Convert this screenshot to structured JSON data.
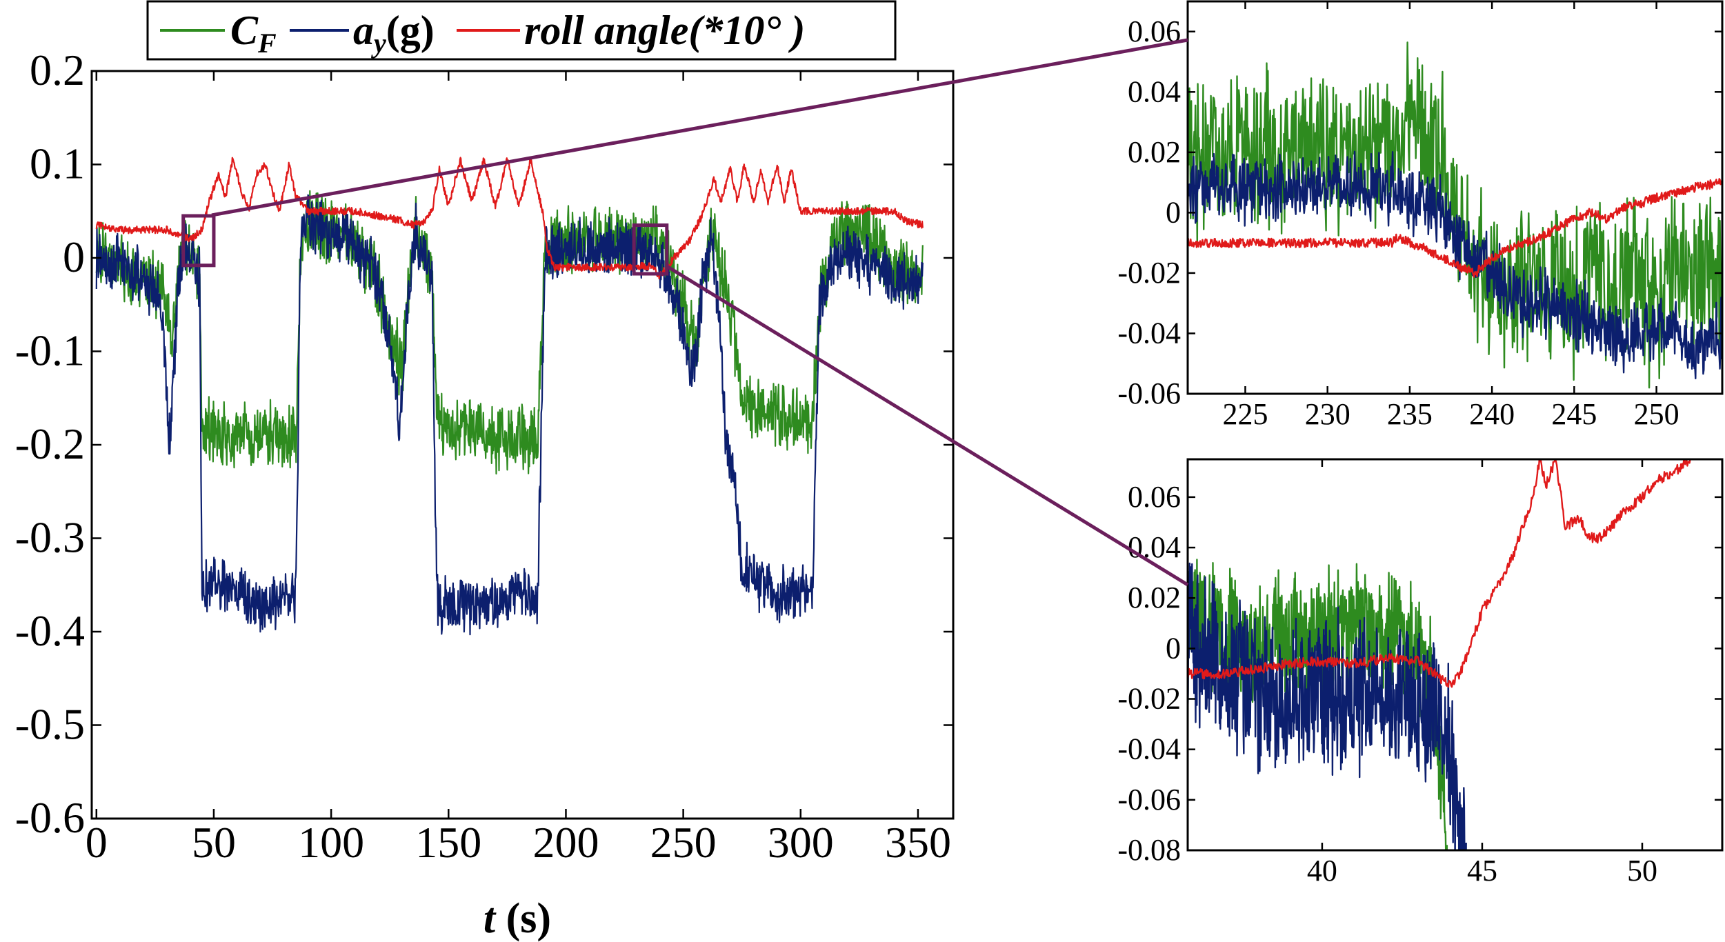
{
  "colors": {
    "cf": "#2e8b1f",
    "ay": "#0c1f6e",
    "roll": "#e01a1a",
    "zoom": "#6b1f5c",
    "axis": "#000000"
  },
  "legend": {
    "cf_main": "C",
    "cf_sub": "F",
    "ay_main": "a",
    "ay_sub": "y",
    "ay_unit": "(g)",
    "roll": "roll angle(*10°  )"
  },
  "main_plot": {
    "xlabel_var": "t",
    "xlabel_unit": " (s)"
  },
  "chart_data": [
    {
      "name": "main",
      "type": "line",
      "title": "",
      "xlabel": "t (s)",
      "ylabel": "",
      "xlim": [
        -2,
        365
      ],
      "ylim": [
        -0.6,
        0.2
      ],
      "xticks": [
        0,
        50,
        100,
        150,
        200,
        250,
        300,
        350
      ],
      "yticks": [
        0.2,
        0.1,
        0,
        -0.1,
        -0.2,
        -0.3,
        -0.4,
        -0.5,
        -0.6
      ],
      "ytick_labels": [
        "0.2",
        "0.1",
        "0",
        "-0.1",
        "-0.2",
        "-0.3",
        "-0.4",
        "-0.5",
        "-0.6"
      ],
      "zoom_boxes": [
        {
          "x": [
            37,
            50
          ],
          "y": [
            -0.008,
            0.045
          ]
        },
        {
          "x": [
            229,
            243
          ],
          "y": [
            -0.017,
            0.035
          ]
        }
      ],
      "series": [
        {
          "name": "C_F",
          "key": "cf",
          "noise": 0.035,
          "x": [
            0,
            10,
            20,
            28,
            32,
            35,
            38,
            41,
            44,
            45,
            50,
            60,
            70,
            80,
            85,
            87,
            90,
            100,
            110,
            118,
            122,
            126,
            130,
            133,
            136,
            140,
            143,
            145,
            150,
            160,
            170,
            180,
            188,
            191,
            195,
            200,
            210,
            220,
            230,
            234,
            238,
            243,
            247,
            250,
            253,
            256,
            258,
            260,
            262,
            265,
            268,
            272,
            275,
            280,
            290,
            300,
            305,
            308,
            315,
            320,
            325,
            330,
            340,
            348,
            352
          ],
          "y": [
            0.005,
            -0.01,
            -0.02,
            -0.03,
            -0.09,
            -0.01,
            0.01,
            0.0,
            -0.02,
            -0.19,
            -0.19,
            -0.19,
            -0.19,
            -0.19,
            -0.19,
            0.02,
            0.04,
            0.03,
            0.01,
            -0.01,
            -0.05,
            -0.09,
            -0.12,
            -0.04,
            0.03,
            0.0,
            -0.02,
            -0.17,
            -0.18,
            -0.18,
            -0.19,
            -0.19,
            -0.19,
            0.0,
            0.02,
            0.02,
            0.02,
            0.02,
            0.02,
            0.02,
            0.02,
            0.0,
            -0.03,
            -0.05,
            -0.08,
            -0.1,
            -0.03,
            -0.01,
            0.03,
            0.0,
            -0.03,
            -0.09,
            -0.15,
            -0.16,
            -0.17,
            -0.18,
            -0.18,
            -0.05,
            0.02,
            0.03,
            0.03,
            0.02,
            -0.01,
            -0.02,
            -0.01
          ]
        },
        {
          "name": "a_y",
          "key": "ay",
          "noise": 0.03,
          "x": [
            0,
            10,
            20,
            28,
            31,
            35,
            38,
            41,
            44,
            45,
            50,
            60,
            70,
            80,
            85,
            87,
            90,
            100,
            110,
            118,
            122,
            126,
            129,
            133,
            136,
            140,
            143,
            145,
            150,
            160,
            170,
            180,
            188,
            191,
            195,
            200,
            210,
            220,
            230,
            234,
            238,
            243,
            247,
            250,
            253,
            256,
            258,
            260,
            262,
            265,
            268,
            272,
            275,
            280,
            290,
            300,
            305,
            308,
            315,
            320,
            325,
            330,
            340,
            348,
            352
          ],
          "y": [
            0.0,
            -0.01,
            -0.02,
            -0.05,
            -0.2,
            -0.02,
            0.01,
            0.0,
            -0.02,
            -0.35,
            -0.35,
            -0.36,
            -0.37,
            -0.36,
            -0.36,
            0.02,
            0.04,
            0.03,
            0.01,
            -0.01,
            -0.05,
            -0.1,
            -0.19,
            -0.04,
            0.03,
            0.0,
            -0.02,
            -0.37,
            -0.37,
            -0.37,
            -0.37,
            -0.36,
            -0.36,
            0.0,
            0.01,
            0.01,
            0.01,
            0.01,
            0.01,
            0.01,
            0.0,
            -0.02,
            -0.05,
            -0.08,
            -0.12,
            -0.1,
            -0.03,
            -0.01,
            0.03,
            -0.05,
            -0.2,
            -0.23,
            -0.33,
            -0.34,
            -0.36,
            -0.36,
            -0.36,
            -0.05,
            0.0,
            0.01,
            0.0,
            -0.01,
            -0.02,
            -0.03,
            -0.02
          ]
        },
        {
          "name": "roll angle",
          "key": "roll",
          "noise": 0.004,
          "x": [
            0,
            10,
            20,
            30,
            35,
            40,
            45,
            48,
            52,
            55,
            58,
            62,
            65,
            68,
            72,
            75,
            78,
            82,
            85,
            87,
            90,
            100,
            110,
            120,
            130,
            135,
            140,
            143,
            146,
            150,
            155,
            160,
            165,
            170,
            175,
            180,
            185,
            190,
            192,
            195,
            200,
            210,
            220,
            230,
            233,
            237,
            240,
            243,
            246,
            250,
            253,
            257,
            260,
            263,
            266,
            270,
            273,
            276,
            280,
            283,
            286,
            290,
            293,
            296,
            300,
            303,
            306,
            308,
            320,
            330,
            340,
            345,
            352
          ],
          "y": [
            0.035,
            0.03,
            0.03,
            0.03,
            0.025,
            0.02,
            0.03,
            0.06,
            0.09,
            0.065,
            0.105,
            0.07,
            0.05,
            0.09,
            0.1,
            0.07,
            0.05,
            0.1,
            0.065,
            0.06,
            0.05,
            0.05,
            0.05,
            0.045,
            0.04,
            0.035,
            0.04,
            0.05,
            0.095,
            0.055,
            0.105,
            0.06,
            0.105,
            0.055,
            0.105,
            0.055,
            0.105,
            0.05,
            0.01,
            -0.01,
            -0.01,
            -0.01,
            -0.01,
            -0.01,
            -0.008,
            -0.01,
            -0.02,
            -0.01,
            0.0,
            0.01,
            0.02,
            0.04,
            0.06,
            0.085,
            0.06,
            0.095,
            0.06,
            0.1,
            0.06,
            0.095,
            0.06,
            0.1,
            0.06,
            0.095,
            0.05,
            0.05,
            0.05,
            0.05,
            0.05,
            0.05,
            0.05,
            0.04,
            0.035
          ]
        }
      ]
    },
    {
      "name": "inset-top",
      "type": "line",
      "title": "",
      "xlabel": "",
      "ylabel": "",
      "xlim": [
        221.5,
        254
      ],
      "ylim": [
        -0.06,
        0.07
      ],
      "xticks": [
        225,
        230,
        235,
        240,
        245,
        250
      ],
      "yticks": [
        0.06,
        0.04,
        0.02,
        0,
        -0.02,
        -0.04,
        -0.06
      ],
      "ytick_labels": [
        "0.06",
        "0.04",
        "0.02",
        "0",
        "-0.02",
        "-0.04",
        "-0.06"
      ],
      "series": [
        {
          "name": "C_F",
          "key": "cf",
          "noise": 0.026,
          "x": [
            221.5,
            225,
            230,
            233.9,
            234,
            235,
            236,
            237,
            238,
            239,
            240,
            241,
            242,
            243,
            244,
            245,
            246,
            247,
            248,
            249,
            250,
            251,
            252,
            254
          ],
          "y": [
            0.02,
            0.02,
            0.02,
            0.02,
            0.02,
            0.04,
            0.025,
            0.02,
            0.0,
            -0.02,
            -0.02,
            -0.03,
            -0.02,
            -0.03,
            -0.02,
            -0.03,
            -0.02,
            -0.03,
            -0.02,
            -0.025,
            -0.03,
            -0.02,
            -0.02,
            -0.02
          ]
        },
        {
          "name": "a_y",
          "key": "ay",
          "noise": 0.011,
          "x": [
            221.5,
            225,
            230,
            234,
            235,
            236,
            237,
            238,
            239,
            240,
            241,
            242,
            243,
            244,
            245,
            246,
            247,
            248,
            249,
            250,
            251,
            252,
            254
          ],
          "y": [
            0.008,
            0.008,
            0.008,
            0.008,
            0.005,
            0.003,
            0.0,
            -0.01,
            -0.015,
            -0.02,
            -0.025,
            -0.03,
            -0.03,
            -0.03,
            -0.035,
            -0.035,
            -0.04,
            -0.04,
            -0.04,
            -0.04,
            -0.04,
            -0.045,
            -0.04
          ]
        },
        {
          "name": "roll angle",
          "key": "roll",
          "noise": 0.0015,
          "x": [
            221.5,
            225,
            230,
            233.9,
            234.3,
            235,
            236,
            237,
            238,
            239,
            240,
            241,
            242,
            243,
            244,
            245,
            246,
            247,
            248,
            249,
            250,
            251,
            252,
            253,
            254
          ],
          "y": [
            -0.01,
            -0.01,
            -0.01,
            -0.01,
            -0.008,
            -0.01,
            -0.012,
            -0.015,
            -0.018,
            -0.02,
            -0.015,
            -0.012,
            -0.01,
            -0.008,
            -0.005,
            -0.002,
            0.0,
            -0.002,
            0.002,
            0.003,
            0.005,
            0.006,
            0.008,
            0.009,
            0.01
          ]
        }
      ]
    },
    {
      "name": "inset-bottom",
      "type": "line",
      "title": "",
      "xlabel": "",
      "ylabel": "",
      "xlim": [
        35.8,
        52.5
      ],
      "ylim": [
        -0.08,
        0.075
      ],
      "xticks": [
        40,
        45,
        50
      ],
      "yticks": [
        0.06,
        0.04,
        0.02,
        0,
        -0.02,
        -0.04,
        -0.06,
        -0.08
      ],
      "ytick_labels": [
        "0.06",
        "0.04",
        "0.02",
        "0",
        "-0.02",
        "-0.04",
        "-0.06",
        "-0.08"
      ],
      "series": [
        {
          "name": "C_F",
          "key": "cf",
          "noise": 0.024,
          "x": [
            35.8,
            37,
            38,
            39,
            40,
            41,
            42,
            43,
            43.5,
            43.8,
            43.9
          ],
          "y": [
            0.015,
            0.005,
            0.0,
            0.005,
            0.005,
            0.01,
            0.005,
            0.0,
            -0.02,
            -0.06,
            -0.08
          ]
        },
        {
          "name": "a_y",
          "key": "ay",
          "noise": 0.03,
          "x": [
            35.8,
            37,
            38,
            39,
            40,
            41,
            42,
            43,
            43.8,
            44.2,
            44.5
          ],
          "y": [
            0.0,
            -0.005,
            -0.015,
            -0.018,
            -0.018,
            -0.02,
            -0.02,
            -0.02,
            -0.03,
            -0.06,
            -0.08
          ]
        },
        {
          "name": "roll angle",
          "key": "roll",
          "noise": 0.002,
          "x": [
            35.8,
            37,
            38,
            39,
            40,
            41,
            42,
            43,
            43.5,
            44,
            44.3,
            44.6,
            45,
            45.5,
            46,
            46.3,
            46.6,
            46.8,
            47,
            47.3,
            47.6,
            48,
            48.3,
            48.6,
            49,
            49.5,
            50,
            50.5,
            51,
            51.5
          ],
          "y": [
            -0.01,
            -0.01,
            -0.008,
            -0.006,
            -0.005,
            -0.006,
            -0.004,
            -0.005,
            -0.01,
            -0.015,
            -0.01,
            0.0,
            0.015,
            0.025,
            0.038,
            0.05,
            0.06,
            0.075,
            0.065,
            0.075,
            0.048,
            0.052,
            0.045,
            0.043,
            0.048,
            0.055,
            0.06,
            0.067,
            0.07,
            0.075
          ]
        }
      ]
    }
  ]
}
